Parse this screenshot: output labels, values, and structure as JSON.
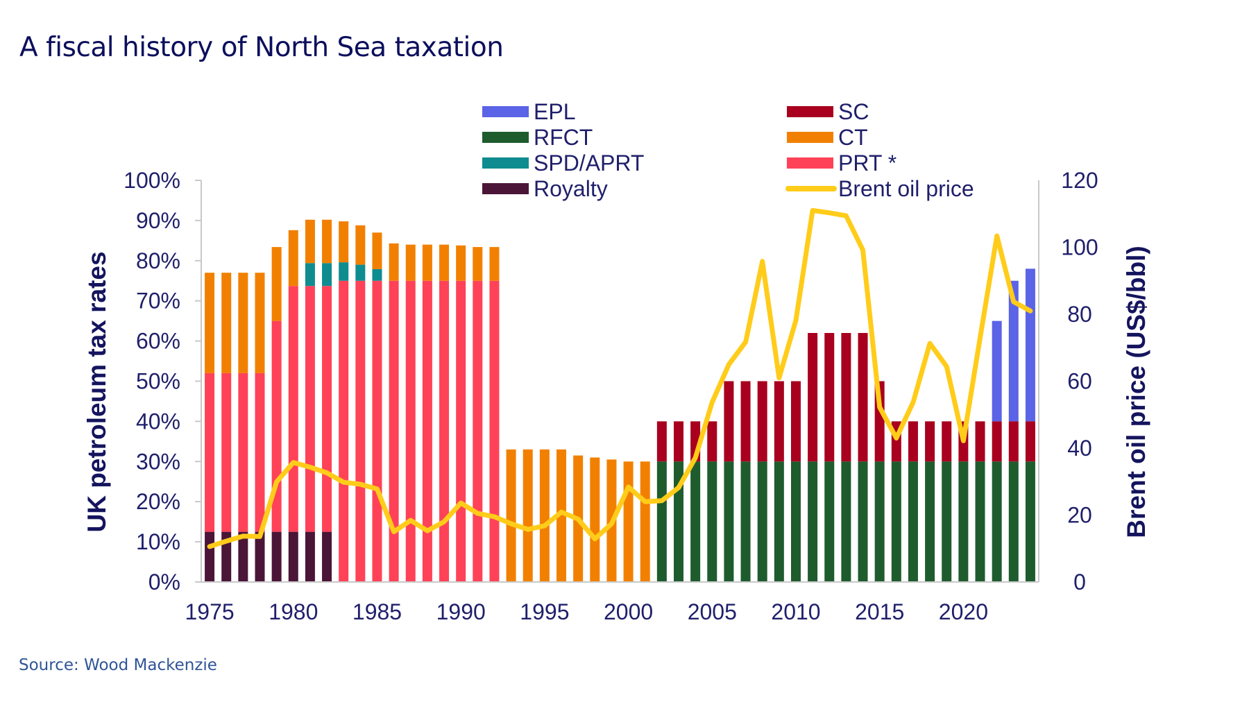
{
  "title": "A fiscal history of North Sea taxation",
  "source": "Source: Wood Mackenzie",
  "chart_data": {
    "type": "bar",
    "stacked": true,
    "title": "A fiscal history of North Sea taxation",
    "xlabel": "",
    "ylabel": "UK petroleum tax rates",
    "y2label": "Brent oil price (US$/bbl)",
    "ylim": [
      0,
      100
    ],
    "y2lim": [
      0,
      120
    ],
    "yticks": [
      "0%",
      "10%",
      "20%",
      "30%",
      "40%",
      "50%",
      "60%",
      "70%",
      "80%",
      "90%",
      "100%"
    ],
    "y2ticks": [
      "0",
      "20",
      "40",
      "60",
      "80",
      "100",
      "120"
    ],
    "xticks": [
      "1975",
      "1980",
      "1985",
      "1990",
      "1995",
      "2000",
      "2005",
      "2010",
      "2015",
      "2020"
    ],
    "grid": false,
    "legend_position": "top-center",
    "legend": [
      {
        "name": "EPL",
        "color": "#5b63e6",
        "kind": "bar"
      },
      {
        "name": "RFCT",
        "color": "#1e5c2e",
        "kind": "bar"
      },
      {
        "name": "SPD/APRT",
        "color": "#0f8c8f",
        "kind": "bar"
      },
      {
        "name": "Royalty",
        "color": "#4b1538",
        "kind": "bar"
      },
      {
        "name": "SC",
        "color": "#a8001e",
        "kind": "bar"
      },
      {
        "name": "CT",
        "color": "#f28000",
        "kind": "bar"
      },
      {
        "name": "PRT *",
        "color": "#ff4257",
        "kind": "bar"
      },
      {
        "name": "Brent oil price",
        "color": "#ffcc1a",
        "kind": "line"
      }
    ],
    "categories": [
      1975,
      1976,
      1977,
      1978,
      1979,
      1980,
      1981,
      1982,
      1983,
      1984,
      1985,
      1986,
      1987,
      1988,
      1989,
      1990,
      1991,
      1992,
      1993,
      1994,
      1995,
      1996,
      1997,
      1998,
      1999,
      2000,
      2001,
      2002,
      2003,
      2004,
      2005,
      2006,
      2007,
      2008,
      2009,
      2010,
      2011,
      2012,
      2013,
      2014,
      2015,
      2016,
      2017,
      2018,
      2019,
      2020,
      2021,
      2022,
      2023,
      2024
    ],
    "series": [
      {
        "name": "Royalty",
        "color": "#4b1538",
        "values": [
          12.5,
          12.5,
          12.5,
          12.5,
          12.5,
          12.5,
          12.5,
          12.5,
          0,
          0,
          0,
          0,
          0,
          0,
          0,
          0,
          0,
          0,
          0,
          0,
          0,
          0,
          0,
          0,
          0,
          0,
          0,
          0,
          0,
          0,
          0,
          0,
          0,
          0,
          0,
          0,
          0,
          0,
          0,
          0,
          0,
          0,
          0,
          0,
          0,
          0,
          0,
          0,
          0,
          0
        ]
      },
      {
        "name": "RFCT",
        "color": "#1e5c2e",
        "values": [
          0,
          0,
          0,
          0,
          0,
          0,
          0,
          0,
          0,
          0,
          0,
          0,
          0,
          0,
          0,
          0,
          0,
          0,
          0,
          0,
          0,
          0,
          0,
          0,
          0,
          0,
          0,
          30,
          30,
          30,
          30,
          30,
          30,
          30,
          30,
          30,
          30,
          30,
          30,
          30,
          30,
          30,
          30,
          30,
          30,
          30,
          30,
          30,
          30,
          30
        ]
      },
      {
        "name": "PRT *",
        "color": "#ff4257",
        "values": [
          39.5,
          39.5,
          39.5,
          39.5,
          52.5,
          61.2,
          61.2,
          61.2,
          75,
          75,
          75,
          75,
          75,
          75,
          75,
          75,
          75,
          75,
          0,
          0,
          0,
          0,
          0,
          0,
          0,
          0,
          0,
          0,
          0,
          0,
          0,
          0,
          0,
          0,
          0,
          0,
          0,
          0,
          0,
          0,
          0,
          0,
          0,
          0,
          0,
          0,
          0,
          0,
          0,
          0
        ]
      },
      {
        "name": "SPD/APRT",
        "color": "#0f8c8f",
        "values": [
          0,
          0,
          0,
          0,
          0,
          0,
          5.7,
          5.7,
          4.6,
          4,
          2.9,
          0,
          0,
          0,
          0,
          0,
          0,
          0,
          0,
          0,
          0,
          0,
          0,
          0,
          0,
          0,
          0,
          0,
          0,
          0,
          0,
          0,
          0,
          0,
          0,
          0,
          0,
          0,
          0,
          0,
          0,
          0,
          0,
          0,
          0,
          0,
          0,
          0,
          0,
          0
        ]
      },
      {
        "name": "SC",
        "color": "#a8001e",
        "values": [
          0,
          0,
          0,
          0,
          0,
          0,
          0,
          0,
          0,
          0,
          0,
          0,
          0,
          0,
          0,
          0,
          0,
          0,
          0,
          0,
          0,
          0,
          0,
          0,
          0,
          0,
          0,
          10,
          10,
          10,
          10,
          20,
          20,
          20,
          20,
          20,
          32,
          32,
          32,
          32,
          20,
          10,
          10,
          10,
          10,
          10,
          10,
          10,
          10,
          10
        ]
      },
      {
        "name": "CT",
        "color": "#f28000",
        "values": [
          25,
          25,
          25,
          25,
          18.4,
          13.9,
          10.8,
          10.8,
          10.2,
          9.8,
          9.1,
          9.3,
          9,
          9,
          9,
          8.8,
          8.4,
          8.4,
          33,
          33,
          33,
          33,
          31.5,
          31,
          30.5,
          30,
          30,
          0,
          0,
          0,
          0,
          0,
          0,
          0,
          0,
          0,
          0,
          0,
          0,
          0,
          0,
          0,
          0,
          0,
          0,
          0,
          0,
          0,
          0,
          0
        ]
      },
      {
        "name": "EPL",
        "color": "#5b63e6",
        "values": [
          0,
          0,
          0,
          0,
          0,
          0,
          0,
          0,
          0,
          0,
          0,
          0,
          0,
          0,
          0,
          0,
          0,
          0,
          0,
          0,
          0,
          0,
          0,
          0,
          0,
          0,
          0,
          0,
          0,
          0,
          0,
          0,
          0,
          0,
          0,
          0,
          0,
          0,
          0,
          0,
          0,
          0,
          0,
          0,
          0,
          0,
          0,
          25,
          35,
          38
        ]
      }
    ],
    "line_series": {
      "name": "Brent oil price",
      "axis": "right",
      "color": "#ffcc1a",
      "values": [
        10.6,
        12.2,
        13.7,
        13.6,
        29.9,
        35.7,
        34.3,
        32.6,
        29.8,
        29.2,
        27.8,
        15,
        18.4,
        15.3,
        18,
        23.6,
        20.5,
        19.5,
        17.4,
        15.7,
        16.8,
        20.9,
        18.8,
        12.9,
        17.4,
        28.4,
        24,
        24.3,
        28.2,
        37.1,
        53.7,
        65,
        71.7,
        95.8,
        61,
        78.2,
        111,
        110.3,
        109.4,
        99.2,
        52.2,
        43,
        53.7,
        71.3,
        64.4,
        42.2,
        73,
        103.4,
        83.7,
        81
      ]
    }
  }
}
